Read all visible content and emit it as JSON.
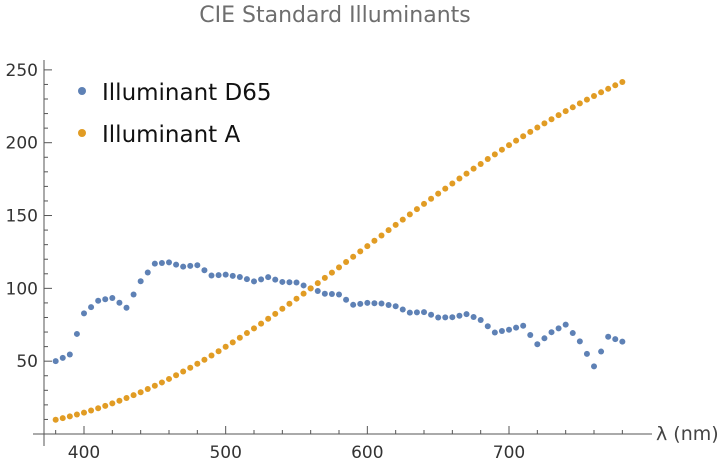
{
  "chart_data": {
    "type": "scatter",
    "title": "CIE Standard Illuminants",
    "xlabel": "λ (nm)",
    "ylabel": "",
    "xlim": [
      375,
      785
    ],
    "ylim": [
      0,
      255
    ],
    "x_ticks": [
      400,
      500,
      600,
      700
    ],
    "y_ticks": [
      50,
      100,
      150,
      200,
      250
    ],
    "grid": false,
    "legend_position": "top-left",
    "x": [
      380,
      385,
      390,
      395,
      400,
      405,
      410,
      415,
      420,
      425,
      430,
      435,
      440,
      445,
      450,
      455,
      460,
      465,
      470,
      475,
      480,
      485,
      490,
      495,
      500,
      505,
      510,
      515,
      520,
      525,
      530,
      535,
      540,
      545,
      550,
      555,
      560,
      565,
      570,
      575,
      580,
      585,
      590,
      595,
      600,
      605,
      610,
      615,
      620,
      625,
      630,
      635,
      640,
      645,
      650,
      655,
      660,
      665,
      670,
      675,
      680,
      685,
      690,
      695,
      700,
      705,
      710,
      715,
      720,
      725,
      730,
      735,
      740,
      745,
      750,
      755,
      760,
      765,
      770,
      775,
      780
    ],
    "series": [
      {
        "name": "Illuminant D65",
        "color": "#5e81b5",
        "values": [
          50.0,
          52.3,
          54.6,
          68.7,
          82.8,
          87.1,
          91.5,
          92.5,
          93.4,
          90.1,
          86.7,
          95.8,
          104.9,
          110.9,
          117.0,
          117.4,
          117.8,
          116.3,
          114.9,
          115.4,
          115.9,
          112.4,
          108.8,
          109.1,
          109.4,
          108.6,
          107.8,
          106.3,
          104.8,
          106.2,
          107.7,
          106.0,
          104.4,
          104.2,
          104.0,
          102.0,
          100.0,
          98.2,
          96.3,
          96.1,
          95.8,
          92.2,
          88.7,
          89.3,
          90.0,
          89.8,
          89.6,
          88.6,
          87.7,
          85.5,
          83.3,
          83.5,
          83.7,
          81.9,
          80.0,
          80.1,
          80.2,
          81.2,
          82.3,
          80.3,
          78.3,
          74.0,
          69.7,
          70.7,
          71.6,
          73.0,
          74.3,
          68.0,
          61.6,
          65.7,
          69.9,
          72.5,
          75.1,
          69.3,
          63.6,
          55.0,
          46.4,
          56.6,
          66.8,
          65.1,
          63.4
        ]
      },
      {
        "name": "Illuminant A",
        "color": "#e19c24",
        "values": [
          9.8,
          10.9,
          12.1,
          13.4,
          14.7,
          16.1,
          17.7,
          19.3,
          21.0,
          22.8,
          24.7,
          26.7,
          28.7,
          30.9,
          33.1,
          35.4,
          37.8,
          40.3,
          42.9,
          45.5,
          48.2,
          51.0,
          53.9,
          56.8,
          59.9,
          62.9,
          66.1,
          69.3,
          72.5,
          75.8,
          79.1,
          82.5,
          86.0,
          89.4,
          92.9,
          96.4,
          100.0,
          103.6,
          107.2,
          110.8,
          114.4,
          118.1,
          121.7,
          125.4,
          129.0,
          132.7,
          136.3,
          140.0,
          143.6,
          147.2,
          150.8,
          154.4,
          158.0,
          161.5,
          165.0,
          168.5,
          172.0,
          175.4,
          178.8,
          182.2,
          185.4,
          188.8,
          192.0,
          195.2,
          198.3,
          201.4,
          204.4,
          207.4,
          210.4,
          213.3,
          216.1,
          218.9,
          221.7,
          224.3,
          227.0,
          229.6,
          232.1,
          234.6,
          237.0,
          239.4,
          241.7
        ]
      }
    ]
  }
}
